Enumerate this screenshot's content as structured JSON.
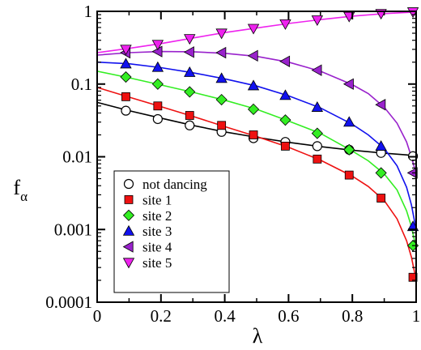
{
  "chart_data": {
    "type": "line",
    "title": "",
    "xlabel": "λ",
    "ylabel": "f",
    "ylabel_sub": "α",
    "xlim": [
      0,
      1
    ],
    "ylim": [
      0.0001,
      1
    ],
    "yscale": "log",
    "grid": false,
    "legend_position": "bottom-left",
    "x_ticks": [
      0,
      0.2,
      0.4,
      0.6,
      0.8,
      1
    ],
    "x_tick_labels": [
      "0",
      "0.2",
      "0.4",
      "0.6",
      "0.8",
      "1"
    ],
    "y_ticks": [
      0.0001,
      0.001,
      0.01,
      0.1,
      1
    ],
    "y_tick_labels": [
      "0.0001",
      "0.001",
      "0.01",
      "0.1",
      "1"
    ],
    "series": [
      {
        "name": "not dancing",
        "marker": "circle",
        "color": "#ffffff",
        "line_color": "#000000",
        "points": [
          [
            0.09,
            0.043
          ],
          [
            0.19,
            0.033
          ],
          [
            0.29,
            0.027
          ],
          [
            0.39,
            0.022
          ],
          [
            0.49,
            0.018
          ],
          [
            0.59,
            0.016
          ],
          [
            0.69,
            0.014
          ],
          [
            0.79,
            0.0125
          ],
          [
            0.89,
            0.0113
          ],
          [
            0.99,
            0.0102
          ]
        ],
        "curve": [
          [
            0,
            0.056
          ],
          [
            0.1,
            0.043
          ],
          [
            0.2,
            0.034
          ],
          [
            0.3,
            0.027
          ],
          [
            0.4,
            0.022
          ],
          [
            0.5,
            0.0185
          ],
          [
            0.6,
            0.0158
          ],
          [
            0.7,
            0.0138
          ],
          [
            0.8,
            0.0123
          ],
          [
            0.9,
            0.0112
          ],
          [
            0.97,
            0.0106
          ],
          [
            1,
            0.0102
          ]
        ]
      },
      {
        "name": "site 1",
        "marker": "square",
        "color": "#ee1111",
        "line_color": "#ee1111",
        "points": [
          [
            0.09,
            0.067
          ],
          [
            0.19,
            0.05
          ],
          [
            0.29,
            0.037
          ],
          [
            0.39,
            0.027
          ],
          [
            0.49,
            0.02
          ],
          [
            0.59,
            0.014
          ],
          [
            0.69,
            0.0093
          ],
          [
            0.79,
            0.0056
          ],
          [
            0.89,
            0.0027
          ],
          [
            0.99,
            0.00022
          ]
        ],
        "curve": [
          [
            0,
            0.09
          ],
          [
            0.1,
            0.066
          ],
          [
            0.2,
            0.049
          ],
          [
            0.3,
            0.036
          ],
          [
            0.4,
            0.026
          ],
          [
            0.5,
            0.019
          ],
          [
            0.6,
            0.0135
          ],
          [
            0.7,
            0.009
          ],
          [
            0.8,
            0.0054
          ],
          [
            0.85,
            0.0039
          ],
          [
            0.9,
            0.0025
          ],
          [
            0.94,
            0.0014
          ],
          [
            0.97,
            0.0007
          ],
          [
            0.985,
            0.00042
          ],
          [
            0.995,
            0.00026
          ],
          [
            1,
            0.00022
          ]
        ]
      },
      {
        "name": "site 2",
        "marker": "diamond",
        "color": "#33ee22",
        "line_color": "#33ee22",
        "points": [
          [
            0.09,
            0.125
          ],
          [
            0.19,
            0.1
          ],
          [
            0.29,
            0.078
          ],
          [
            0.39,
            0.061
          ],
          [
            0.49,
            0.045
          ],
          [
            0.59,
            0.032
          ],
          [
            0.69,
            0.021
          ],
          [
            0.79,
            0.0125
          ],
          [
            0.89,
            0.006
          ],
          [
            0.99,
            0.0006
          ]
        ],
        "curve": [
          [
            0,
            0.15
          ],
          [
            0.1,
            0.122
          ],
          [
            0.2,
            0.097
          ],
          [
            0.3,
            0.077
          ],
          [
            0.4,
            0.06
          ],
          [
            0.5,
            0.045
          ],
          [
            0.6,
            0.031
          ],
          [
            0.7,
            0.021
          ],
          [
            0.8,
            0.012
          ],
          [
            0.85,
            0.0088
          ],
          [
            0.9,
            0.0058
          ],
          [
            0.94,
            0.0035
          ],
          [
            0.97,
            0.0018
          ],
          [
            0.985,
            0.0011
          ],
          [
            0.995,
            0.0007
          ],
          [
            1,
            0.0006
          ]
        ]
      },
      {
        "name": "site 3",
        "marker": "triangle-up",
        "color": "#1111ee",
        "line_color": "#1111ee",
        "points": [
          [
            0.09,
            0.19
          ],
          [
            0.19,
            0.17
          ],
          [
            0.29,
            0.145
          ],
          [
            0.39,
            0.12
          ],
          [
            0.49,
            0.095
          ],
          [
            0.59,
            0.07
          ],
          [
            0.69,
            0.048
          ],
          [
            0.79,
            0.03
          ],
          [
            0.89,
            0.014
          ],
          [
            0.99,
            0.0011
          ]
        ],
        "curve": [
          [
            0,
            0.2
          ],
          [
            0.1,
            0.19
          ],
          [
            0.2,
            0.168
          ],
          [
            0.3,
            0.143
          ],
          [
            0.4,
            0.118
          ],
          [
            0.5,
            0.094
          ],
          [
            0.6,
            0.069
          ],
          [
            0.7,
            0.047
          ],
          [
            0.8,
            0.028
          ],
          [
            0.85,
            0.02
          ],
          [
            0.9,
            0.013
          ],
          [
            0.94,
            0.0075
          ],
          [
            0.97,
            0.0038
          ],
          [
            0.985,
            0.0022
          ],
          [
            0.995,
            0.0013
          ],
          [
            1,
            0.0011
          ]
        ]
      },
      {
        "name": "site 4",
        "marker": "triangle-left",
        "color": "#9922cc",
        "line_color": "#9922cc",
        "points": [
          [
            0.09,
            0.27
          ],
          [
            0.19,
            0.28
          ],
          [
            0.29,
            0.275
          ],
          [
            0.39,
            0.27
          ],
          [
            0.49,
            0.245
          ],
          [
            0.59,
            0.205
          ],
          [
            0.69,
            0.155
          ],
          [
            0.79,
            0.1
          ],
          [
            0.89,
            0.052
          ],
          [
            0.99,
            0.006
          ]
        ],
        "curve": [
          [
            0,
            0.25
          ],
          [
            0.1,
            0.27
          ],
          [
            0.2,
            0.28
          ],
          [
            0.3,
            0.278
          ],
          [
            0.4,
            0.265
          ],
          [
            0.5,
            0.24
          ],
          [
            0.6,
            0.2
          ],
          [
            0.7,
            0.15
          ],
          [
            0.8,
            0.098
          ],
          [
            0.85,
            0.074
          ],
          [
            0.9,
            0.048
          ],
          [
            0.94,
            0.029
          ],
          [
            0.97,
            0.016
          ],
          [
            0.985,
            0.01
          ],
          [
            0.995,
            0.007
          ],
          [
            1,
            0.006
          ]
        ]
      },
      {
        "name": "site 5",
        "marker": "triangle-down",
        "color": "#ee22ee",
        "line_color": "#ee22ee",
        "points": [
          [
            0.09,
            0.3
          ],
          [
            0.19,
            0.35
          ],
          [
            0.29,
            0.42
          ],
          [
            0.39,
            0.5
          ],
          [
            0.49,
            0.58
          ],
          [
            0.59,
            0.67
          ],
          [
            0.69,
            0.76
          ],
          [
            0.79,
            0.85
          ],
          [
            0.89,
            0.93
          ],
          [
            0.99,
            0.98
          ]
        ],
        "curve": [
          [
            0,
            0.27
          ],
          [
            0.1,
            0.31
          ],
          [
            0.2,
            0.36
          ],
          [
            0.3,
            0.43
          ],
          [
            0.4,
            0.51
          ],
          [
            0.5,
            0.59
          ],
          [
            0.6,
            0.68
          ],
          [
            0.7,
            0.77
          ],
          [
            0.8,
            0.86
          ],
          [
            0.9,
            0.93
          ],
          [
            1,
            0.98
          ]
        ]
      }
    ]
  }
}
